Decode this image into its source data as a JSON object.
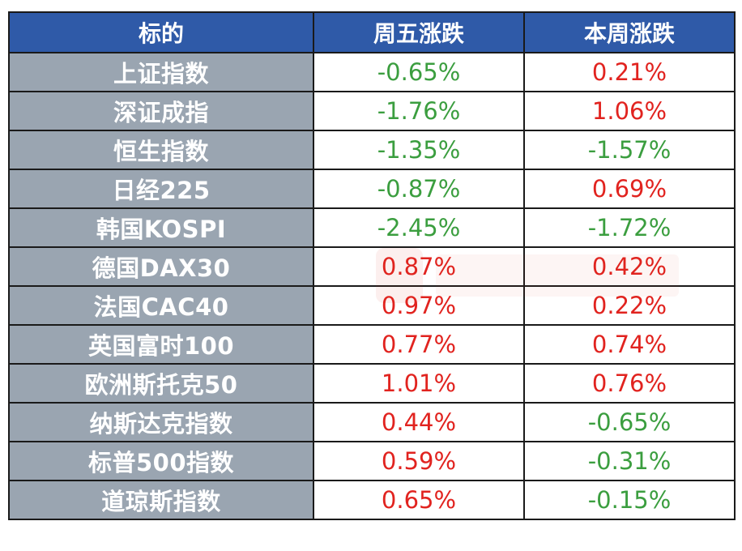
{
  "colors": {
    "header_bg": "#2f5aa8",
    "name_bg": "#9aa5b1",
    "rise": "#e1231f",
    "fall": "#3b9e3f"
  },
  "chart_data": {
    "type": "table",
    "columns": [
      "标的",
      "周五涨跌",
      "本周涨跌"
    ],
    "rows": [
      [
        "上证指数",
        "-0.65%",
        "0.21%"
      ],
      [
        "深证成指",
        "-1.76%",
        "1.06%"
      ],
      [
        "恒生指数",
        "-1.35%",
        "-1.57%"
      ],
      [
        "日经225",
        "-0.87%",
        "0.69%"
      ],
      [
        "韩国KOSPI",
        "-2.45%",
        "-1.72%"
      ],
      [
        "德国DAX30",
        "0.87%",
        "0.42%"
      ],
      [
        "法国CAC40",
        "0.97%",
        "0.22%"
      ],
      [
        "英国富时100",
        "0.77%",
        "0.74%"
      ],
      [
        "欧洲斯托克50",
        "1.01%",
        "0.76%"
      ],
      [
        "纳斯达克指数",
        "0.44%",
        "-0.65%"
      ],
      [
        "标普500指数",
        "0.59%",
        "-0.31%"
      ],
      [
        "道琼斯指数",
        "0.65%",
        "-0.15%"
      ]
    ]
  }
}
